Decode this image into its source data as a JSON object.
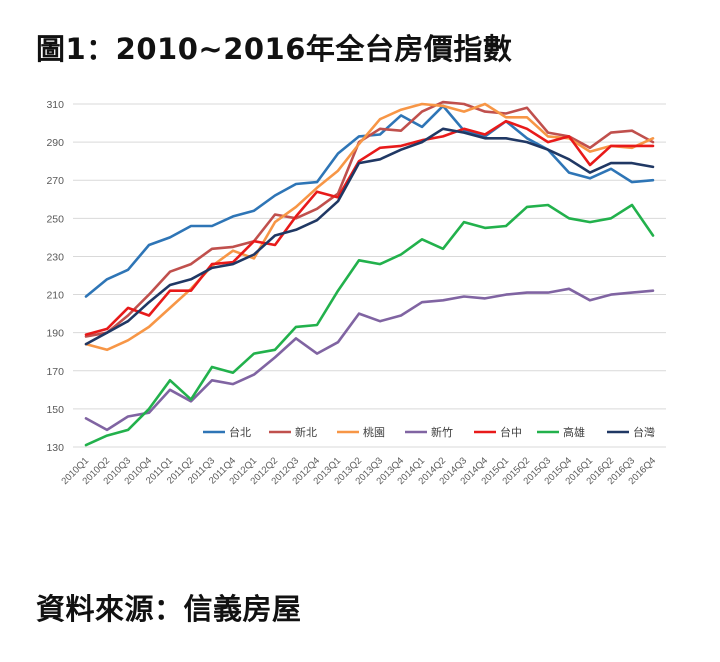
{
  "title": "圖1：2010~2016年全台房價指數",
  "source_note": "資料來源：信義房屋",
  "chart_data": {
    "type": "line",
    "title": "圖1：2010~2016年全台房價指數",
    "xlabel": "",
    "ylabel": "",
    "ylim": [
      130,
      310
    ],
    "yticks": [
      130,
      150,
      170,
      190,
      210,
      230,
      250,
      270,
      290,
      310
    ],
    "grid": true,
    "legend_position": "bottom-right",
    "categories": [
      "2010Q1",
      "2010Q2",
      "2010Q3",
      "2010Q4",
      "2011Q1",
      "2011Q2",
      "2011Q3",
      "2011Q4",
      "2012Q1",
      "2012Q2",
      "2012Q3",
      "2012Q4",
      "2013Q1",
      "2013Q2",
      "2013Q3",
      "2013Q4",
      "2014Q1",
      "2014Q2",
      "2014Q3",
      "2014Q4",
      "2015Q1",
      "2015Q2",
      "2015Q3",
      "2015Q4",
      "2016Q1",
      "2016Q2",
      "2016Q3",
      "2016Q4"
    ],
    "series": [
      {
        "name": "台北",
        "color": "#2E75B6",
        "values": [
          209,
          218,
          223,
          236,
          240,
          246,
          246,
          251,
          254,
          262,
          268,
          269,
          284,
          293,
          294,
          304,
          298,
          309,
          296,
          293,
          301,
          292,
          286,
          274,
          271,
          276,
          269,
          270
        ]
      },
      {
        "name": "新北",
        "color": "#C0504D",
        "values": [
          188,
          190,
          199,
          210,
          222,
          226,
          234,
          235,
          238,
          252,
          250,
          255,
          263,
          290,
          297,
          296,
          306,
          311,
          310,
          306,
          305,
          308,
          295,
          293,
          287,
          295,
          296,
          290
        ]
      },
      {
        "name": "桃園",
        "color": "#F79646",
        "values": [
          184,
          181,
          186,
          193,
          203,
          213,
          225,
          233,
          229,
          248,
          256,
          266,
          275,
          289,
          302,
          307,
          310,
          309,
          306,
          310,
          303,
          303,
          293,
          292,
          285,
          288,
          287,
          292
        ]
      },
      {
        "name": "新竹",
        "color": "#8064A2",
        "values": [
          145,
          139,
          146,
          148,
          160,
          154,
          165,
          163,
          168,
          177,
          187,
          179,
          185,
          200,
          196,
          199,
          206,
          207,
          209,
          208,
          210,
          211,
          211,
          213,
          207,
          210,
          211,
          212
        ]
      },
      {
        "name": "台中",
        "color": "#E81A1A",
        "values": [
          189,
          192,
          203,
          199,
          212,
          212,
          226,
          227,
          238,
          236,
          251,
          264,
          261,
          280,
          287,
          288,
          291,
          293,
          297,
          294,
          301,
          297,
          290,
          293,
          278,
          288,
          288,
          288
        ]
      },
      {
        "name": "高雄",
        "color": "#22B14C",
        "values": [
          131,
          136,
          139,
          150,
          165,
          155,
          172,
          169,
          179,
          181,
          193,
          194,
          212,
          228,
          226,
          231,
          239,
          234,
          248,
          245,
          246,
          256,
          257,
          250,
          248,
          250,
          257,
          241
        ]
      },
      {
        "name": "台灣",
        "color": "#203864",
        "values": [
          184,
          190,
          196,
          206,
          215,
          218,
          224,
          226,
          231,
          241,
          244,
          249,
          259,
          279,
          281,
          286,
          290,
          297,
          295,
          292,
          292,
          290,
          286,
          281,
          274,
          279,
          279,
          277
        ]
      }
    ]
  }
}
